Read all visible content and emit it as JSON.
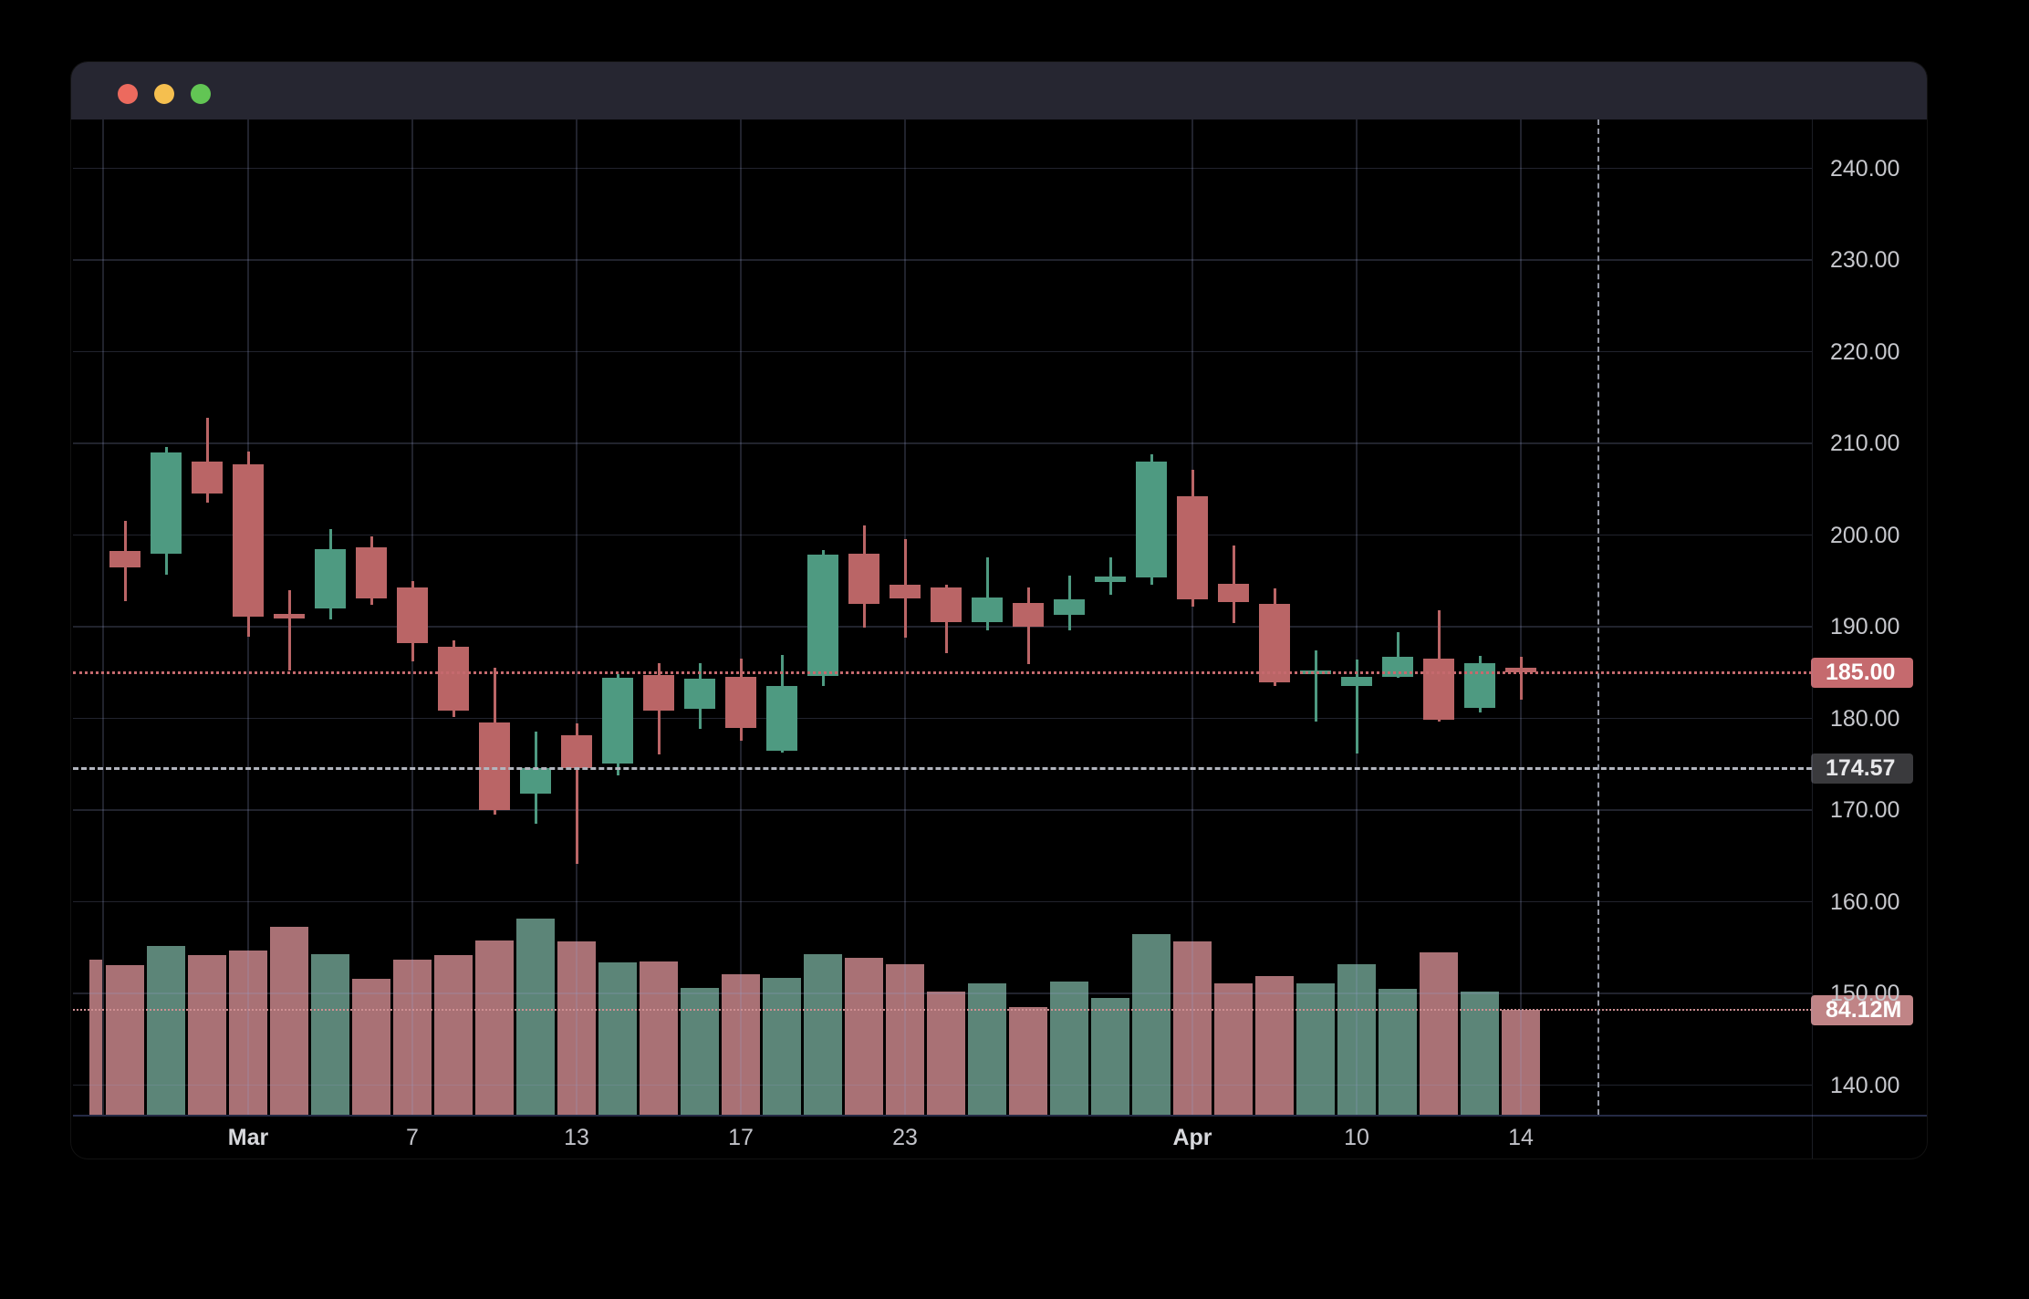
{
  "window": {
    "title": "",
    "traffic_lights": [
      "close",
      "minimize",
      "zoom"
    ]
  },
  "colors": {
    "background": "#000000",
    "titlebar": "#262631",
    "traffic_red": "#ec6a5e",
    "traffic_yellow": "#f5bf4f",
    "traffic_green": "#62c554",
    "candle_up": "#4e9a81",
    "candle_down": "#ba6566",
    "volume_up": "#5c8578",
    "volume_down": "#a97175",
    "grid": "rgba(152,161,205,0.22)",
    "axis_text": "#c6c7cc",
    "last_price_line": "#c56a6e",
    "prev_close_line": "#b2b5be",
    "volume_line": "#cf9093",
    "crosshair": "#8f93a0",
    "badge_last_price_bg": "#c56a6e",
    "badge_prev_close_bg": "#3a3a3d",
    "badge_volume_bg": "#c08486",
    "bottom_axis_line": "#252a45"
  },
  "price_axis": {
    "tick_labels": [
      "240.00",
      "230.00",
      "220.00",
      "210.00",
      "200.00",
      "190.00",
      "180.00",
      "170.00",
      "160.00",
      "150.00",
      "140.00"
    ],
    "tick_values": [
      240,
      230,
      220,
      210,
      200,
      190,
      180,
      170,
      160,
      150,
      140
    ]
  },
  "time_axis": {
    "ticks": [
      {
        "i": 3,
        "label": "Mar",
        "bold": true
      },
      {
        "i": 7,
        "label": "7",
        "bold": false
      },
      {
        "i": 11,
        "label": "13",
        "bold": false
      },
      {
        "i": 15,
        "label": "17",
        "bold": false
      },
      {
        "i": 19,
        "label": "23",
        "bold": false
      },
      {
        "i": 26,
        "label": "Apr",
        "bold": true
      },
      {
        "i": 30,
        "label": "10",
        "bold": false
      },
      {
        "i": 34,
        "label": "14",
        "bold": false
      }
    ],
    "extra_unlabeled_gridline_i": -0.53
  },
  "badges": {
    "last_price": {
      "label": "185.00",
      "value": 185.0
    },
    "prev_close": {
      "label": "174.57",
      "value": 174.57
    },
    "volume": {
      "label": "84.12M",
      "value_millions": 84.12
    }
  },
  "crosshair": {
    "index": 35.9
  },
  "chart_data": {
    "type": "candlestick_with_volume",
    "title": "",
    "ylabel": "Price",
    "y_range_visible": [
      136,
      245
    ],
    "volume_unit": "millions of shares",
    "legend_position": "none",
    "grid": true,
    "last_price_line": 185.0,
    "prev_close_line": 174.57,
    "last_volume_line_millions": 84.12,
    "clipped_left_partial_bar": {
      "volume": 124,
      "direction": "down"
    },
    "candles": [
      {
        "o": 198.3,
        "h": 201.5,
        "l": 192.8,
        "c": 196.5,
        "v": 120.0
      },
      {
        "o": 198.0,
        "h": 209.6,
        "l": 195.7,
        "c": 209.0,
        "v": 135.0
      },
      {
        "o": 208.0,
        "h": 212.8,
        "l": 203.5,
        "c": 204.5,
        "v": 128.0
      },
      {
        "o": 207.7,
        "h": 209.1,
        "l": 188.9,
        "c": 191.1,
        "v": 132.0
      },
      {
        "o": 191.4,
        "h": 194.0,
        "l": 185.2,
        "c": 190.9,
        "v": 151.0
      },
      {
        "o": 192.0,
        "h": 200.6,
        "l": 190.8,
        "c": 198.5,
        "v": 129.0
      },
      {
        "o": 198.7,
        "h": 199.9,
        "l": 192.4,
        "c": 193.1,
        "v": 109.0
      },
      {
        "o": 194.3,
        "h": 195.0,
        "l": 186.2,
        "c": 188.2,
        "v": 124.0
      },
      {
        "o": 187.8,
        "h": 188.5,
        "l": 180.1,
        "c": 180.8,
        "v": 128.0
      },
      {
        "o": 179.6,
        "h": 185.5,
        "l": 169.5,
        "c": 170.0,
        "v": 140.0
      },
      {
        "o": 171.8,
        "h": 178.6,
        "l": 168.5,
        "c": 174.6,
        "v": 157.0
      },
      {
        "o": 178.2,
        "h": 179.5,
        "l": 164.1,
        "c": 174.6,
        "v": 139.0
      },
      {
        "o": 175.1,
        "h": 184.8,
        "l": 173.8,
        "c": 184.4,
        "v": 122.0
      },
      {
        "o": 184.7,
        "h": 186.0,
        "l": 176.1,
        "c": 180.8,
        "v": 123.0
      },
      {
        "o": 181.0,
        "h": 186.0,
        "l": 178.9,
        "c": 184.3,
        "v": 102.0
      },
      {
        "o": 184.5,
        "h": 186.5,
        "l": 177.6,
        "c": 179.0,
        "v": 113.0
      },
      {
        "o": 176.5,
        "h": 186.9,
        "l": 176.3,
        "c": 183.5,
        "v": 110.0
      },
      {
        "o": 184.6,
        "h": 198.4,
        "l": 183.5,
        "c": 197.9,
        "v": 129.0
      },
      {
        "o": 198.0,
        "h": 201.0,
        "l": 189.9,
        "c": 192.5,
        "v": 126.0
      },
      {
        "o": 194.6,
        "h": 199.6,
        "l": 188.8,
        "c": 193.1,
        "v": 121.0
      },
      {
        "o": 194.3,
        "h": 194.6,
        "l": 187.1,
        "c": 190.5,
        "v": 99.0
      },
      {
        "o": 190.5,
        "h": 197.6,
        "l": 189.6,
        "c": 193.2,
        "v": 105.0
      },
      {
        "o": 192.6,
        "h": 194.3,
        "l": 185.9,
        "c": 190.0,
        "v": 86.0
      },
      {
        "o": 191.3,
        "h": 195.6,
        "l": 189.6,
        "c": 193.0,
        "v": 107.0
      },
      {
        "o": 194.9,
        "h": 197.6,
        "l": 193.5,
        "c": 195.5,
        "v": 94.0
      },
      {
        "o": 195.4,
        "h": 208.8,
        "l": 194.6,
        "c": 208.0,
        "v": 145.0
      },
      {
        "o": 204.2,
        "h": 207.1,
        "l": 192.2,
        "c": 193.0,
        "v": 139.0
      },
      {
        "o": 194.7,
        "h": 198.9,
        "l": 190.4,
        "c": 192.7,
        "v": 105.0
      },
      {
        "o": 192.5,
        "h": 194.2,
        "l": 183.5,
        "c": 183.9,
        "v": 111.0
      },
      {
        "o": 184.9,
        "h": 187.4,
        "l": 179.7,
        "c": 185.2,
        "v": 105.0
      },
      {
        "o": 183.5,
        "h": 186.4,
        "l": 176.2,
        "c": 184.5,
        "v": 121.0
      },
      {
        "o": 184.5,
        "h": 189.4,
        "l": 184.4,
        "c": 186.7,
        "v": 101.0
      },
      {
        "o": 186.5,
        "h": 191.8,
        "l": 179.7,
        "c": 179.9,
        "v": 130.0
      },
      {
        "o": 181.1,
        "h": 186.8,
        "l": 180.6,
        "c": 186.0,
        "v": 99.0
      },
      {
        "o": 185.5,
        "h": 186.7,
        "l": 182.0,
        "c": 185.0,
        "v": 84.12
      }
    ]
  }
}
